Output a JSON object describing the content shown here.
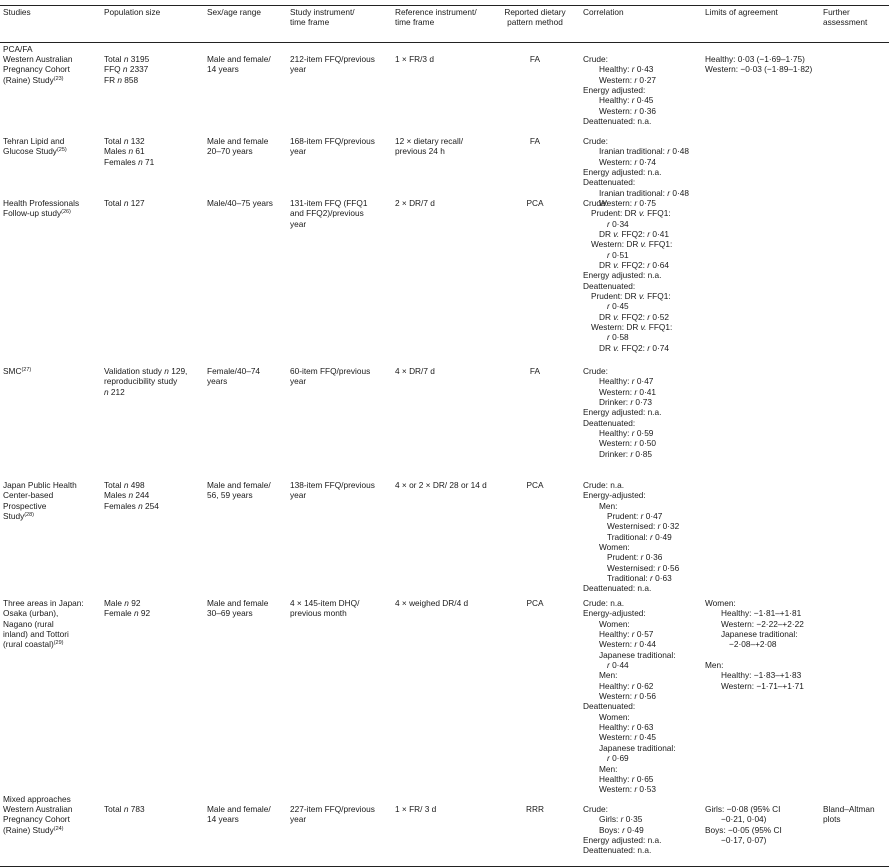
{
  "headers": {
    "study": [
      "Studies"
    ],
    "pop": [
      "Population size"
    ],
    "sex": [
      "Sex/age range"
    ],
    "instr": [
      "Study instrument/",
      "time frame"
    ],
    "ref": [
      "Reference instrument/",
      "time frame"
    ],
    "method": [
      "Reported dietary",
      "pattern method"
    ],
    "corr": [
      "Correlation"
    ],
    "loa": [
      "Limits of agreement"
    ],
    "further": [
      "Further",
      "assessment"
    ]
  },
  "sections": {
    "pcafa": "PCA/FA",
    "mixed": "Mixed approaches"
  },
  "rows": [
    {
      "study": {
        "lines": [
          "Western Australian",
          "Pregnancy Cohort",
          "(Raine) Study"
        ],
        "ref": "(23)"
      },
      "pop": [
        "Total n 3195",
        "FFQ n 2337",
        "FR n 858"
      ],
      "sex": [
        "Male and female/",
        "14 years"
      ],
      "instr": [
        "212-item FFQ/previous",
        "year"
      ],
      "ref": [
        "1 × FR/3 d"
      ],
      "method": "FA",
      "corr": [
        [
          "Crude:",
          0
        ],
        [
          "Healthy: r 0·43",
          2
        ],
        [
          "Western: r 0·27",
          2
        ],
        [
          "Energy adjusted:",
          0
        ],
        [
          "Healthy: r 0·45",
          2
        ],
        [
          "Western: r 0·36",
          2
        ],
        [
          "Deattenuated: n.a.",
          0
        ]
      ],
      "loa": [
        [
          "Healthy: 0·03 (−1·69–1·75)",
          0
        ],
        [
          "Western: −0·03 (−1·89–1·82)",
          0
        ]
      ],
      "further": []
    },
    {
      "study": {
        "lines": [
          "Tehran Lipid and",
          "Glucose Study"
        ],
        "ref": "(25)"
      },
      "pop": [
        "Total n 132",
        "Males n 61",
        "Females n 71"
      ],
      "sex": [
        "Male and female",
        "20–70 years"
      ],
      "instr": [
        "168-item FFQ/previous",
        "year"
      ],
      "ref": [
        "12 × dietary recall/",
        "previous 24 h"
      ],
      "method": "FA",
      "corr": [
        [
          "Crude:",
          0
        ],
        [
          "Iranian traditional: r 0·48",
          2
        ],
        [
          "Western: r 0·74",
          2
        ],
        [
          "Energy adjusted: n.a.",
          0
        ],
        [
          "Deattenuated:",
          0
        ],
        [
          "Iranian traditional: r 0·48",
          2
        ],
        [
          "Western: r 0·75",
          2
        ]
      ],
      "loa": [],
      "further": []
    },
    {
      "study": {
        "lines": [
          "Health Professionals",
          "Follow-up study"
        ],
        "ref": "(26)"
      },
      "pop": [
        "Total n 127"
      ],
      "sex": [
        "Male/40–75 years"
      ],
      "instr": [
        "131-item FFQ (FFQ1",
        "and FFQ2)/previous",
        "year"
      ],
      "ref": [
        "2 × DR/7 d"
      ],
      "method": "PCA",
      "corr": [
        [
          "Crude:",
          0
        ],
        [
          "Prudent: DR v. FFQ1:",
          1
        ],
        [
          "r 0·34",
          3
        ],
        [
          "DR v. FFQ2: r 0·41",
          2
        ],
        [
          "Western: DR v. FFQ1:",
          1
        ],
        [
          "r 0·51",
          3
        ],
        [
          "DR v. FFQ2: r 0·64",
          2
        ],
        [
          "Energy adjusted: n.a.",
          0
        ],
        [
          "Deattenuated:",
          0
        ],
        [
          "Prudent: DR v. FFQ1:",
          1
        ],
        [
          "r 0·45",
          3
        ],
        [
          "DR v. FFQ2: r 0·52",
          2
        ],
        [
          "Western: DR v. FFQ1:",
          1
        ],
        [
          "r 0·58",
          3
        ],
        [
          "DR v. FFQ2: r 0·74",
          2
        ]
      ],
      "loa": [],
      "further": []
    },
    {
      "study": {
        "lines": [
          "SMC"
        ],
        "ref": "(27)"
      },
      "pop": [
        "Validation study n 129,",
        "reproducibility study",
        "n 212"
      ],
      "sex": [
        "Female/40–74",
        "years"
      ],
      "instr": [
        "60-item FFQ/previous",
        "year"
      ],
      "ref": [
        "4 × DR/7 d"
      ],
      "method": "FA",
      "corr": [
        [
          "Crude:",
          0
        ],
        [
          "Healthy: r 0·47",
          2
        ],
        [
          "Western: r 0·41",
          2
        ],
        [
          "Drinker: r 0·73",
          2
        ],
        [
          "Energy adjusted: n.a.",
          0
        ],
        [
          "Deattenuated:",
          0
        ],
        [
          "Healthy: r 0·59",
          2
        ],
        [
          "Western: r 0·50",
          2
        ],
        [
          "Drinker: r 0·85",
          2
        ]
      ],
      "loa": [],
      "further": []
    },
    {
      "study": {
        "lines": [
          "Japan Public Health",
          "Center-based",
          "Prospective",
          "Study"
        ],
        "ref": "(28)"
      },
      "pop": [
        "Total n 498",
        "Males n 244",
        "Females n 254"
      ],
      "sex": [
        "Male and female/",
        "56, 59 years"
      ],
      "instr": [
        "138-item FFQ/previous",
        "year"
      ],
      "ref": [
        "4 × or 2 × DR/ 28 or 14 d"
      ],
      "method": "PCA",
      "corr": [
        [
          "Crude: n.a.",
          0
        ],
        [
          "Energy-adjusted:",
          0
        ],
        [
          "Men:",
          2
        ],
        [
          "Prudent: r 0·47",
          3
        ],
        [
          "Westernised: r 0·32",
          3
        ],
        [
          "Traditional: r 0·49",
          3
        ],
        [
          "Women:",
          2
        ],
        [
          "Prudent: r 0·36",
          3
        ],
        [
          "Westernised: r 0·56",
          3
        ],
        [
          "Traditional: r 0·63",
          3
        ],
        [
          "Deattenuated: n.a.",
          0
        ]
      ],
      "loa": [],
      "further": []
    },
    {
      "study": {
        "lines": [
          "Three areas in Japan:",
          "Osaka (urban),",
          "Nagano (rural",
          "inland) and Tottori",
          "(rural coastal)"
        ],
        "ref": "(29)"
      },
      "pop": [
        "Male n 92",
        "Female n 92"
      ],
      "sex": [
        "Male and female",
        "30–69 years"
      ],
      "instr": [
        "4 × 145-item DHQ/",
        "previous month"
      ],
      "ref": [
        "4 × weighed DR/4  d"
      ],
      "method": "PCA",
      "corr": [
        [
          "Crude: n.a.",
          0
        ],
        [
          "Energy-adjusted:",
          0
        ],
        [
          "Women:",
          2
        ],
        [
          "Healthy: r 0·57",
          2
        ],
        [
          "Western: r 0·44",
          2
        ],
        [
          "Japanese traditional:",
          2
        ],
        [
          "r 0·44",
          3
        ],
        [
          "Men:",
          2
        ],
        [
          "Healthy: r 0·62",
          2
        ],
        [
          "Western: r 0·56",
          2
        ],
        [
          "Deattenuated:",
          0
        ],
        [
          "Women:",
          2
        ],
        [
          "Healthy: r 0·63",
          2
        ],
        [
          "Western: r 0·45",
          2
        ],
        [
          "Japanese traditional:",
          2
        ],
        [
          "r 0·69",
          3
        ],
        [
          "Men:",
          2
        ],
        [
          "Healthy: r 0·65",
          2
        ],
        [
          "Western: r 0·53",
          2
        ]
      ],
      "loa": [
        [
          "Women:",
          0
        ],
        [
          "Healthy: −1·81–+1·81",
          2
        ],
        [
          "Western: −2·22–+2·22",
          2
        ],
        [
          "Japanese traditional:",
          2
        ],
        [
          "−2·08–+2·08",
          3
        ],
        [
          "",
          0
        ],
        [
          "Men:",
          0
        ],
        [
          "Healthy: −1·83–+1·83",
          2
        ],
        [
          "Western: −1·71–+1·71",
          2
        ]
      ],
      "further": []
    },
    {
      "study": {
        "lines": [
          "Western Australian",
          "Pregnancy Cohort",
          "(Raine) Study"
        ],
        "ref": "(24)"
      },
      "pop": [
        "Total n 783"
      ],
      "sex": [
        "Male and female/",
        "14 years"
      ],
      "instr": [
        "227-item FFQ/previous",
        "year"
      ],
      "ref": [
        "1 × FR/ 3 d"
      ],
      "method": "RRR",
      "corr": [
        [
          "Crude:",
          0
        ],
        [
          "Girls: r 0·35",
          2
        ],
        [
          "Boys: r 0·49",
          2
        ],
        [
          "Energy adjusted: n.a.",
          0
        ],
        [
          "Deattenuated: n.a.",
          0
        ]
      ],
      "loa": [
        [
          "Girls: −0·08 (95% CI",
          0
        ],
        [
          "−0·21, 0·04)",
          2
        ],
        [
          "Boys: −0·05 (95% CI",
          0
        ],
        [
          "−0·17, 0·07)",
          2
        ]
      ],
      "further": [
        "Bland–Altman",
        "plots"
      ]
    }
  ]
}
